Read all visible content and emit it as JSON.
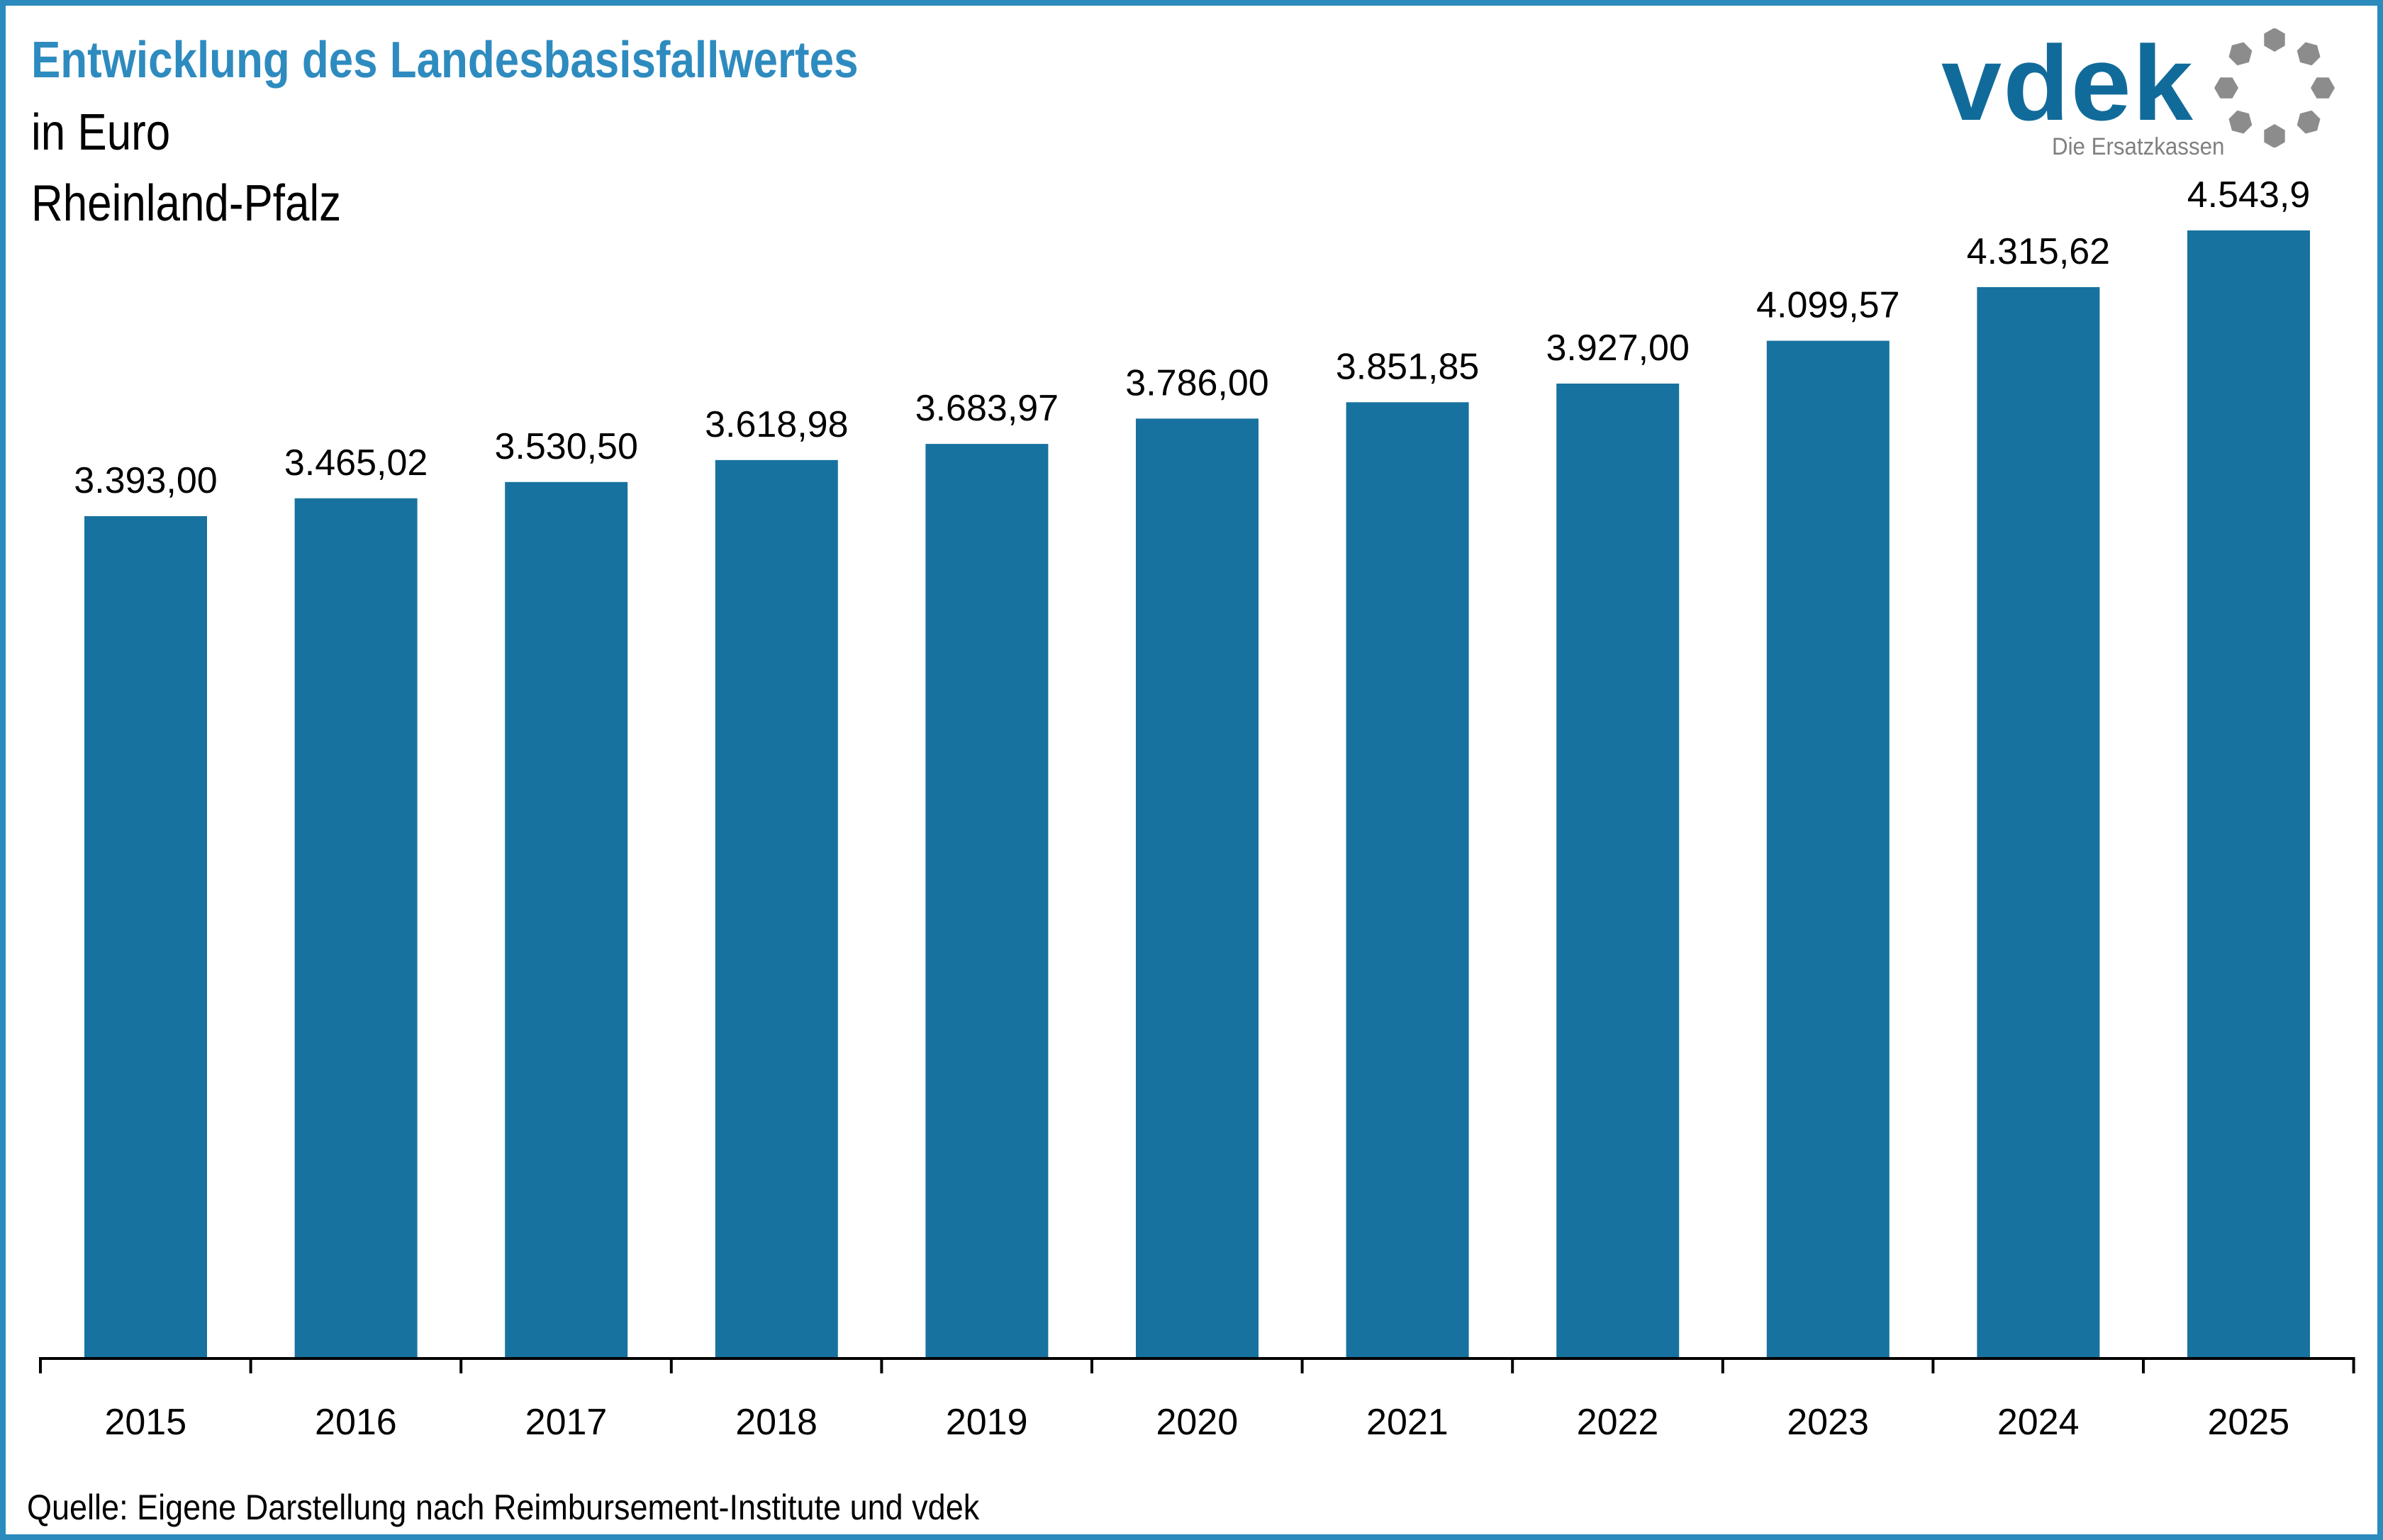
{
  "header": {
    "title": "Entwicklung des Landesbasisfallwertes",
    "unit": "in Euro",
    "region": "Rheinland-Pfalz"
  },
  "logo": {
    "brand": "vdek",
    "tagline": "Die Ersatzkassen",
    "icon": "ring-of-dots-icon",
    "brand_color": "#116b9a",
    "ring_color": "#8c8c8c"
  },
  "colors": {
    "frame": "#2b8bbd",
    "title": "#2e8bbf",
    "bar": "#17729f"
  },
  "footer": {
    "source": "Quelle: Eigene Darstellung nach Reimbursement-Institute und vdek"
  },
  "chart_data": {
    "type": "bar",
    "title": "Entwicklung des Landesbasisfallwertes",
    "subtitle": "in Euro – Rheinland-Pfalz",
    "xlabel": "",
    "ylabel": "Euro",
    "ylim": [
      0,
      4543.9
    ],
    "grid": false,
    "legend": "none",
    "categories": [
      "2015",
      "2016",
      "2017",
      "2018",
      "2019",
      "2020",
      "2021",
      "2022",
      "2023",
      "2024",
      "2025"
    ],
    "values": [
      3393.0,
      3465.02,
      3530.5,
      3618.98,
      3683.97,
      3786.0,
      3851.85,
      3927.0,
      4099.57,
      4315.62,
      4543.9
    ],
    "value_labels": [
      "3.393,00",
      "3.465,02",
      "3.530,50",
      "3.618,98",
      "3.683,97",
      "3.786,00",
      "3.851,85",
      "3.927,00",
      "4.099,57",
      "4.315,62",
      "4.543,9"
    ]
  }
}
